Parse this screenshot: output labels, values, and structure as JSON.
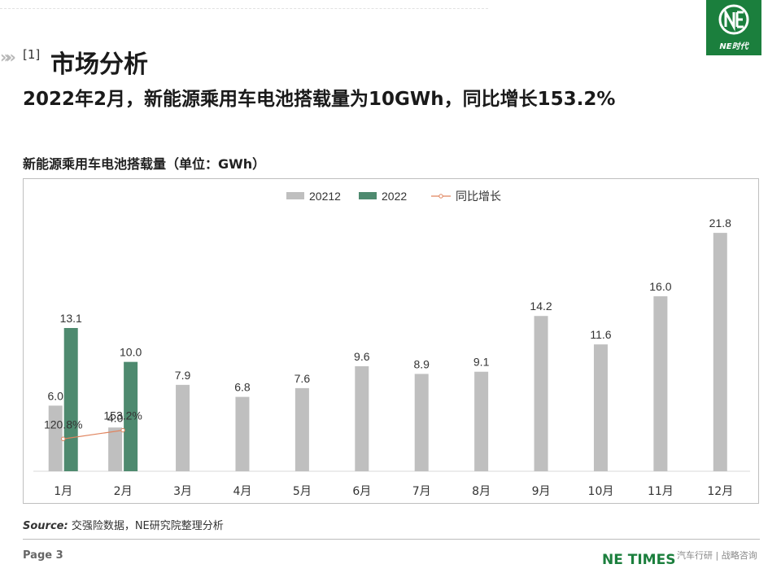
{
  "header": {
    "section_number": "[1]",
    "section_title": "市场分析",
    "headline": "2022年2月，新能源乘用车电池搭载量为10GWh，同比增长153.2%",
    "logo_text": "NE时代"
  },
  "chart_data": {
    "type": "bar",
    "title": "新能源乘用车电池搭载量（单位：GWh）",
    "categories": [
      "1月",
      "2月",
      "3月",
      "4月",
      "5月",
      "6月",
      "7月",
      "8月",
      "9月",
      "10月",
      "11月",
      "12月"
    ],
    "series": [
      {
        "name": "20212",
        "color": "#bfbfbf",
        "values": [
          6.0,
          4.0,
          7.9,
          6.8,
          7.6,
          9.6,
          8.9,
          9.1,
          14.2,
          11.6,
          16.0,
          21.8
        ]
      },
      {
        "name": "2022",
        "color": "#4e8a6f",
        "values": [
          13.1,
          10.0,
          null,
          null,
          null,
          null,
          null,
          null,
          null,
          null,
          null,
          null
        ]
      }
    ],
    "line_series": {
      "name": "同比增长",
      "color": "#e0845e",
      "values": [
        120.8,
        153.2
      ],
      "labels": [
        "120.8%",
        "153.2%"
      ]
    },
    "ylim": [
      0,
      23
    ],
    "grid": false,
    "legend_position": "top-center"
  },
  "source": {
    "label": "Source:",
    "text": "交强险数据，NE研究院整理分析"
  },
  "footer": {
    "page": "Page 3",
    "brand": "NE TIMES",
    "tagline": "汽车行研 | 战略咨询"
  }
}
